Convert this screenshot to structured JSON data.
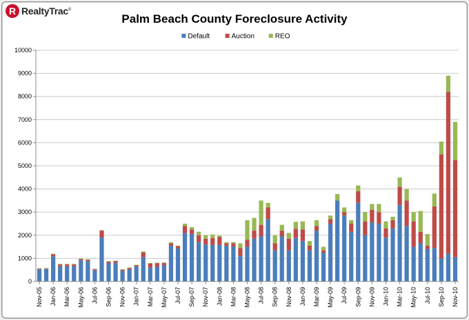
{
  "brand": {
    "logo_mark": "R",
    "logo_text": "RealtyTrac",
    "logo_sup": "®"
  },
  "chart_data": {
    "type": "bar",
    "stacked": true,
    "title": "Palm Beach County Foreclosure Activity",
    "xlabel": "",
    "ylabel": "",
    "ylim": [
      0,
      10000
    ],
    "yticks": [
      0,
      1000,
      2000,
      3000,
      4000,
      5000,
      6000,
      7000,
      8000,
      9000,
      10000
    ],
    "grid": "horizontal",
    "legend": "top-center",
    "xtick_labels": [
      "Nov-05",
      "Jan-06",
      "Mar-06",
      "May-06",
      "Jul-06",
      "Sep-06",
      "Nov-06",
      "Jan-07",
      "Mar-07",
      "May-07",
      "Jul-07",
      "Sep-07",
      "Nov-07",
      "Jan-08",
      "Mar-08",
      "May-08",
      "Jul-08",
      "Sep-08",
      "Nov-08",
      "Jan-09",
      "Mar-09",
      "May-09",
      "Jul-09",
      "Sep-09",
      "Nov-09",
      "Jan-10",
      "Mar-10",
      "May-10",
      "Jul-10",
      "Sep-10",
      "Nov-10"
    ],
    "categories": [
      "Nov-05",
      "Dec-05",
      "Jan-06",
      "Feb-06",
      "Mar-06",
      "Apr-06",
      "May-06",
      "Jun-06",
      "Jul-06",
      "Aug-06",
      "Sep-06",
      "Oct-06",
      "Nov-06",
      "Dec-06",
      "Jan-07",
      "Feb-07",
      "Mar-07",
      "Apr-07",
      "May-07",
      "Jun-07",
      "Jul-07",
      "Aug-07",
      "Sep-07",
      "Oct-07",
      "Nov-07",
      "Dec-07",
      "Jan-08",
      "Feb-08",
      "Mar-08",
      "Apr-08",
      "May-08",
      "Jun-08",
      "Jul-08",
      "Aug-08",
      "Sep-08",
      "Oct-08",
      "Nov-08",
      "Dec-08",
      "Jan-09",
      "Feb-09",
      "Mar-09",
      "Apr-09",
      "May-09",
      "Jun-09",
      "Jul-09",
      "Aug-09",
      "Sep-09",
      "Oct-09",
      "Nov-09",
      "Dec-09",
      "Jan-10",
      "Feb-10",
      "Mar-10",
      "Apr-10",
      "May-10",
      "Jun-10",
      "Jul-10",
      "Aug-10",
      "Sep-10",
      "Oct-10",
      "Nov-10"
    ],
    "series": [
      {
        "name": "Default",
        "color": "#4a7ebb",
        "values": [
          530,
          540,
          1080,
          660,
          660,
          660,
          920,
          880,
          480,
          1900,
          790,
          800,
          450,
          520,
          650,
          1050,
          600,
          640,
          700,
          1550,
          1430,
          2100,
          2050,
          1700,
          1600,
          1580,
          1580,
          1550,
          1500,
          1100,
          1500,
          1850,
          1950,
          2700,
          1350,
          1950,
          1350,
          1880,
          1750,
          1350,
          2200,
          1250,
          2500,
          3500,
          2850,
          2150,
          3400,
          2000,
          2550,
          2500,
          1900,
          2300,
          3300,
          2400,
          1500,
          1650,
          1400,
          1450,
          1000,
          1200,
          1050
        ]
      },
      {
        "name": "Auction",
        "color": "#be4b48",
        "values": [
          20,
          20,
          100,
          80,
          80,
          80,
          50,
          60,
          50,
          300,
          70,
          80,
          60,
          60,
          50,
          200,
          180,
          150,
          100,
          100,
          100,
          300,
          200,
          300,
          250,
          300,
          350,
          100,
          150,
          350,
          300,
          350,
          500,
          500,
          300,
          250,
          500,
          400,
          500,
          200,
          200,
          100,
          200,
          0,
          150,
          350,
          500,
          600,
          550,
          500,
          400,
          350,
          800,
          1100,
          1100,
          500,
          150,
          1800,
          4500,
          7000,
          4200
        ]
      },
      {
        "name": "REO",
        "color": "#98b954",
        "values": [
          20,
          20,
          20,
          20,
          20,
          20,
          20,
          20,
          20,
          20,
          20,
          20,
          20,
          20,
          20,
          50,
          20,
          20,
          20,
          50,
          20,
          100,
          100,
          150,
          150,
          150,
          50,
          50,
          50,
          200,
          850,
          550,
          1050,
          200,
          350,
          250,
          250,
          300,
          350,
          200,
          250,
          150,
          150,
          280,
          200,
          150,
          250,
          400,
          250,
          350,
          300,
          150,
          400,
          500,
          400,
          900,
          500,
          550,
          550,
          700,
          1650
        ]
      }
    ]
  }
}
